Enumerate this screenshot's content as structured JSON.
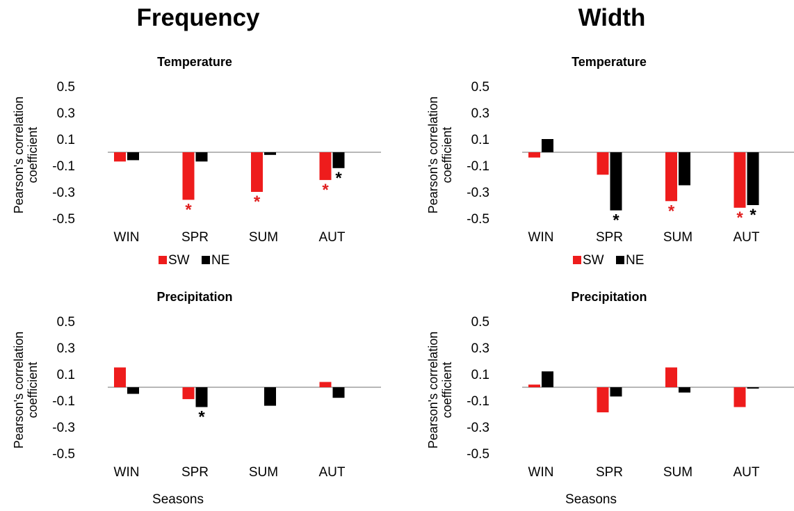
{
  "column_titles": {
    "left": "Frequency",
    "right": "Width"
  },
  "x_axis_title": "Seasons",
  "colors": {
    "SW": "#ee1c1c",
    "NE": "#000000",
    "star_SW": "#e02020",
    "star_NE": "#000000",
    "axis": "#8c8c8c"
  },
  "chart_data": [
    {
      "type": "bar",
      "title": "Temperature",
      "ylabel": [
        "Pearson's correlation",
        "coefficient"
      ],
      "xlabel": "",
      "categories": [
        "WIN",
        "SPR",
        "SUM",
        "AUT"
      ],
      "yticks": [
        "0.5",
        "0.3",
        "0.1",
        "-0.1",
        "-0.3",
        "-0.5"
      ],
      "ylim": [
        -0.5,
        0.5
      ],
      "series": [
        {
          "name": "SW",
          "values": [
            -0.07,
            -0.36,
            -0.3,
            -0.21
          ]
        },
        {
          "name": "NE",
          "values": [
            -0.06,
            -0.07,
            -0.02,
            -0.12
          ]
        }
      ],
      "significance": [
        {
          "series": "SW",
          "category": "SPR",
          "label": "*"
        },
        {
          "series": "SW",
          "category": "SUM",
          "label": "*"
        },
        {
          "series": "SW",
          "category": "AUT",
          "label": "*"
        },
        {
          "series": "NE",
          "category": "AUT",
          "label": "*"
        }
      ],
      "legend": {
        "position": "bottom",
        "entries": [
          "SW",
          "NE"
        ]
      }
    },
    {
      "type": "bar",
      "title": "Temperature",
      "ylabel": [
        "Pearson's correlation",
        "coefficient"
      ],
      "xlabel": "",
      "categories": [
        "WIN",
        "SPR",
        "SUM",
        "AUT"
      ],
      "yticks": [
        "0.5",
        "0.3",
        "0.1",
        "-0.1",
        "-0.3",
        "-0.5"
      ],
      "ylim": [
        -0.5,
        0.5
      ],
      "series": [
        {
          "name": "SW",
          "values": [
            -0.04,
            -0.17,
            -0.37,
            -0.42
          ]
        },
        {
          "name": "NE",
          "values": [
            0.1,
            -0.44,
            -0.25,
            -0.4
          ]
        }
      ],
      "significance": [
        {
          "series": "NE",
          "category": "SPR",
          "label": "*"
        },
        {
          "series": "SW",
          "category": "SUM",
          "label": "*"
        },
        {
          "series": "SW",
          "category": "AUT",
          "label": "*"
        },
        {
          "series": "NE",
          "category": "AUT",
          "label": "*"
        }
      ],
      "legend": {
        "position": "bottom",
        "entries": [
          "SW",
          "NE"
        ]
      }
    },
    {
      "type": "bar",
      "title": "Precipitation",
      "ylabel": [
        "Pearson's correlation",
        "coefficient"
      ],
      "xlabel": "Seasons",
      "categories": [
        "WIN",
        "SPR",
        "SUM",
        "AUT"
      ],
      "yticks": [
        "0.5",
        "0.3",
        "0.1",
        "-0.1",
        "-0.3",
        "-0.5"
      ],
      "ylim": [
        -0.5,
        0.5
      ],
      "series": [
        {
          "name": "SW",
          "values": [
            0.15,
            -0.09,
            0.0,
            0.04
          ]
        },
        {
          "name": "NE",
          "values": [
            -0.05,
            -0.15,
            -0.14,
            -0.08
          ]
        }
      ],
      "significance": [
        {
          "series": "NE",
          "category": "SPR",
          "label": "*"
        }
      ],
      "legend": null
    },
    {
      "type": "bar",
      "title": "Precipitation",
      "ylabel": [
        "Pearson's correlation",
        "coefficient"
      ],
      "xlabel": "Seasons",
      "categories": [
        "WIN",
        "SPR",
        "SUM",
        "AUT"
      ],
      "yticks": [
        "0.5",
        "0.3",
        "0.1",
        "-0.1",
        "-0.3",
        "-0.5"
      ],
      "ylim": [
        -0.5,
        0.5
      ],
      "series": [
        {
          "name": "SW",
          "values": [
            0.02,
            -0.19,
            0.15,
            -0.15
          ]
        },
        {
          "name": "NE",
          "values": [
            0.12,
            -0.07,
            -0.04,
            -0.01
          ]
        }
      ],
      "significance": [],
      "legend": null
    }
  ]
}
